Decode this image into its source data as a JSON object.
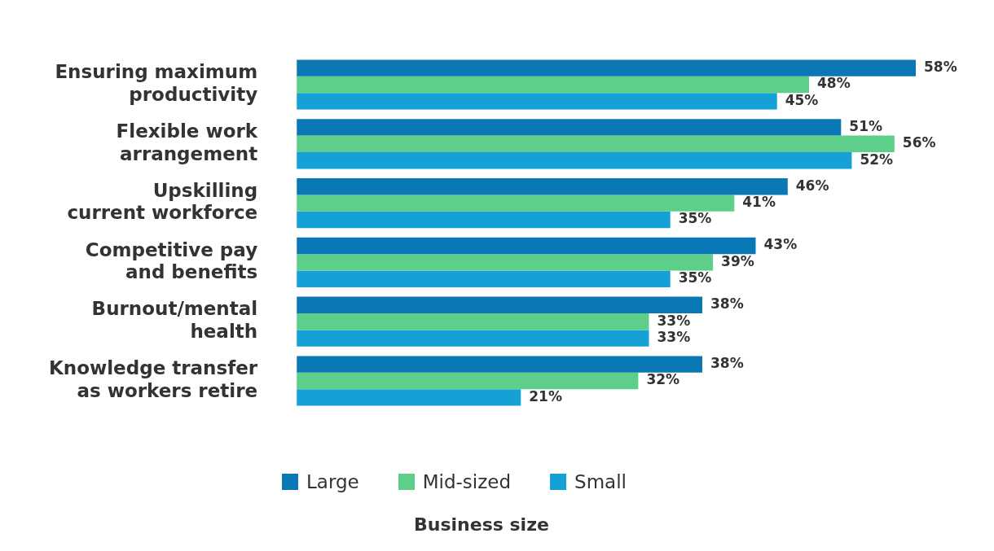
{
  "chart_data": {
    "type": "bar",
    "orientation": "horizontal",
    "categories": [
      "Ensuring maximum productivity",
      "Flexible work arrangement",
      "Upskilling current workforce",
      "Competitive pay and benefits",
      "Burnout/mental health",
      "Knowledge transfer as workers retire"
    ],
    "series": [
      {
        "name": "Large",
        "color": "#0a78b5",
        "values": [
          58,
          51,
          46,
          43,
          38,
          38
        ],
        "value_labels": [
          "58%",
          "51%",
          "46%",
          "43%",
          "38%",
          "38%"
        ]
      },
      {
        "name": "Mid-sized",
        "color": "#5ecf8a",
        "values": [
          48,
          56,
          41,
          39,
          33,
          32
        ],
        "value_labels": [
          "48%",
          "56%",
          "41%",
          "39%",
          "33%",
          "32%"
        ]
      },
      {
        "name": "Small",
        "color": "#15a0d6",
        "values": [
          45,
          52,
          35,
          35,
          33,
          21
        ],
        "value_labels": [
          "45%",
          "52%",
          "35%",
          "35%",
          "33%",
          "21%"
        ]
      }
    ],
    "legend": "bottom",
    "legend_title": "Business size",
    "tick_labels": "y"
  }
}
